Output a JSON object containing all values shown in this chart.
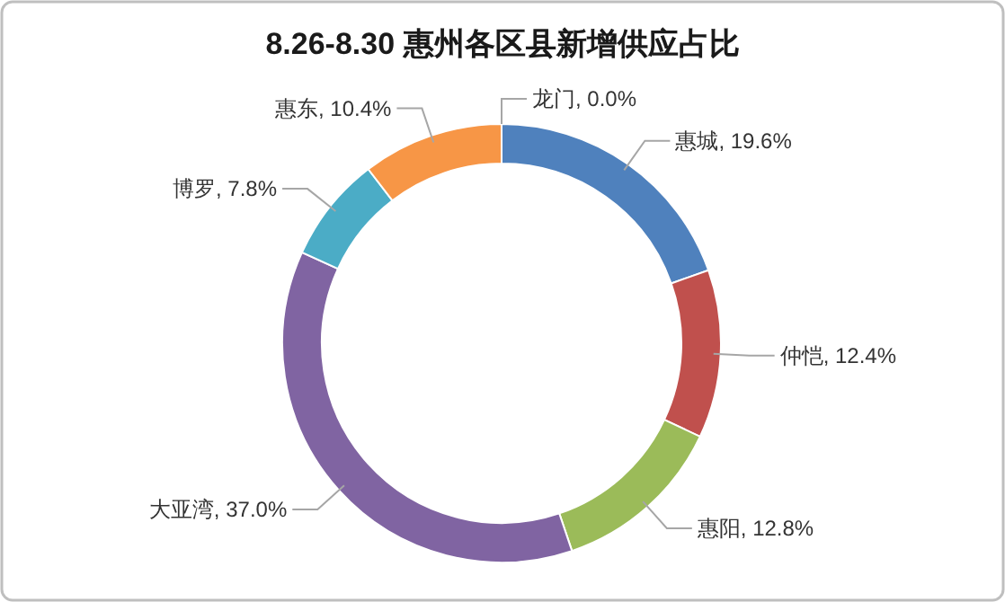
{
  "chart_data": {
    "type": "donut",
    "title": "8.26-8.30 惠州各区县新增供应占比",
    "categories": [
      "惠城",
      "仲恺",
      "惠阳",
      "大亚湾",
      "博罗",
      "惠东",
      "龙门"
    ],
    "values": [
      19.6,
      12.4,
      12.8,
      37.0,
      7.8,
      10.4,
      0.0
    ],
    "value_labels": [
      "19.6%",
      "12.4%",
      "12.8%",
      "37.0%",
      "7.8%",
      "10.4%",
      "0.0%"
    ],
    "colors": [
      "#4f81bd",
      "#c0504d",
      "#9bbb59",
      "#8064a2",
      "#4bacc6",
      "#f79646",
      null
    ]
  }
}
